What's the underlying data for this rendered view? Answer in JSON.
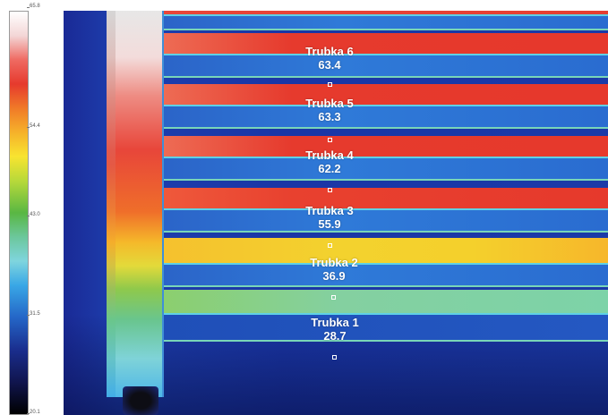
{
  "scale": {
    "ticks": [
      "65.8",
      "54.4",
      "43.0",
      "31.5",
      "20.1"
    ]
  },
  "measurements": [
    {
      "name": "Trubka 6",
      "value": "63.4"
    },
    {
      "name": "Trubka 5",
      "value": "63.3"
    },
    {
      "name": "Trubka 4",
      "value": "62.2"
    },
    {
      "name": "Trubka 3",
      "value": "55.9"
    },
    {
      "name": "Trubka 2",
      "value": "36.9"
    },
    {
      "name": "Trubka 1",
      "value": "28.7"
    }
  ],
  "colors": {
    "hot": "#e6392c",
    "warm": "#f3d22e",
    "mild": "#7dd3a8",
    "cool": "#2b64c8",
    "background": "#1a2a96"
  }
}
